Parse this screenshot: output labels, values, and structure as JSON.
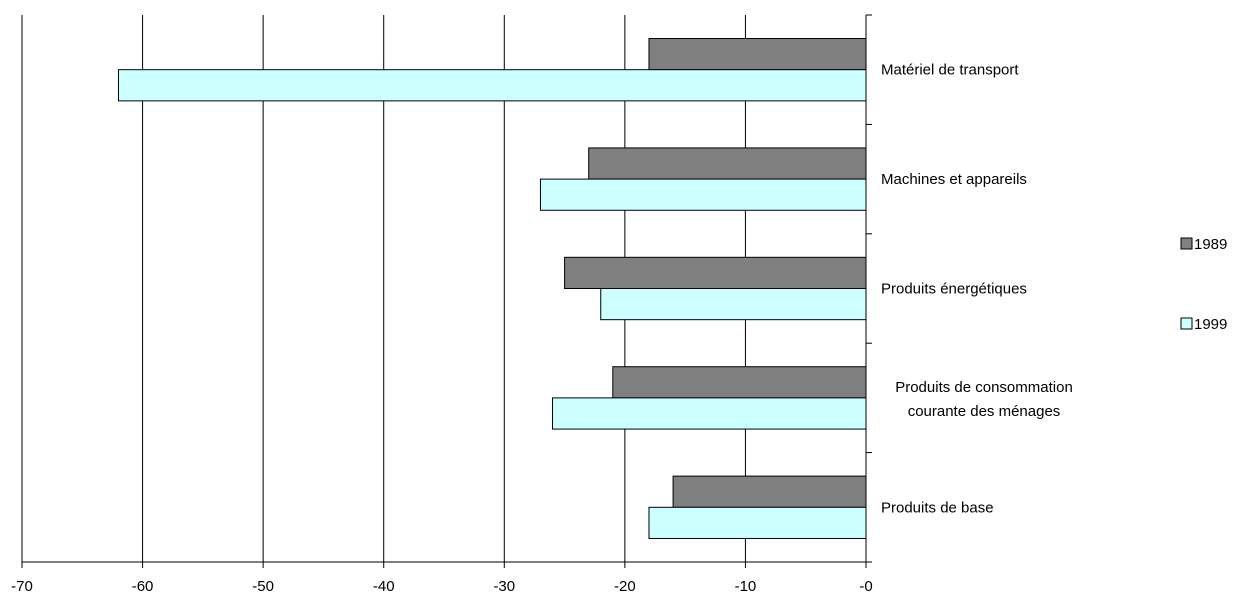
{
  "chart_data": {
    "type": "bar",
    "orientation": "horizontal",
    "title": "",
    "xlabel": "",
    "ylabel": "",
    "xlim": [
      -70,
      0
    ],
    "x_ticks": [
      -70,
      -60,
      -50,
      -40,
      -30,
      -20,
      -10,
      0
    ],
    "x_tick_labels": [
      "-70",
      "-60",
      "-50",
      "-40",
      "-30",
      "-20",
      "-10",
      "-0"
    ],
    "grid": "vertical",
    "legend_position": "right",
    "categories": [
      [
        "Matériel de transport"
      ],
      [
        "Machines et appareils"
      ],
      [
        "Produits énergétiques"
      ],
      [
        "Produits de consommation",
        "courante des ménages"
      ],
      [
        "Produits de base"
      ]
    ],
    "series": [
      {
        "name": "1989",
        "color": "#808080",
        "values": [
          -18,
          -23,
          -25,
          -21,
          -16
        ]
      },
      {
        "name": "1999",
        "color": "#ccffff",
        "values": [
          -62,
          -27,
          -22,
          -26,
          -18
        ]
      }
    ]
  }
}
